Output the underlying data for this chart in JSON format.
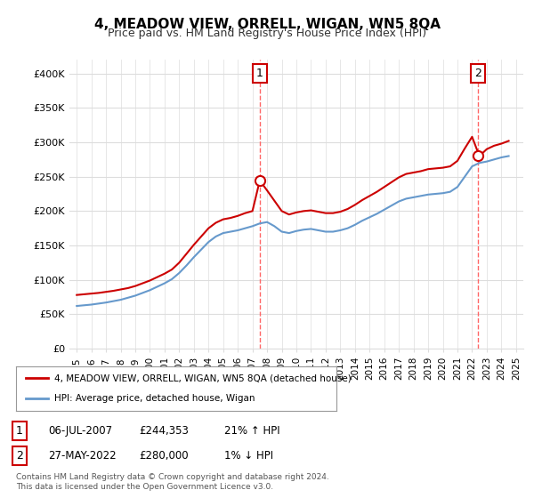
{
  "title": "4, MEADOW VIEW, ORRELL, WIGAN, WN5 8QA",
  "subtitle": "Price paid vs. HM Land Registry's House Price Index (HPI)",
  "xlabel": "",
  "ylabel": "",
  "background_color": "#ffffff",
  "grid_color": "#dddddd",
  "sale1": {
    "date_label": "06-JUL-2007",
    "price": 244353,
    "hpi_rel": "21% ↑ HPI",
    "marker_x": 2007.5
  },
  "sale2": {
    "date_label": "27-MAY-2022",
    "price": 280000,
    "hpi_rel": "1% ↓ HPI",
    "marker_x": 2022.4
  },
  "legend_label_red": "4, MEADOW VIEW, ORRELL, WIGAN, WN5 8QA (detached house)",
  "legend_label_blue": "HPI: Average price, detached house, Wigan",
  "footnote": "Contains HM Land Registry data © Crown copyright and database right 2024.\nThis data is licensed under the Open Government Licence v3.0.",
  "red_color": "#cc0000",
  "blue_color": "#6699cc",
  "dashed_red": "#ff6666",
  "ylim": [
    0,
    420000
  ],
  "yticks": [
    0,
    50000,
    100000,
    150000,
    200000,
    250000,
    300000,
    350000,
    400000
  ],
  "ytick_labels": [
    "£0",
    "£50K",
    "£100K",
    "£150K",
    "£200K",
    "£250K",
    "£300K",
    "£350K",
    "£400K"
  ],
  "xlim_start": 1994.5,
  "xlim_end": 2025.5,
  "xticks": [
    1995,
    1996,
    1997,
    1998,
    1999,
    2000,
    2001,
    2002,
    2003,
    2004,
    2005,
    2006,
    2007,
    2008,
    2009,
    2010,
    2011,
    2012,
    2013,
    2014,
    2015,
    2016,
    2017,
    2018,
    2019,
    2020,
    2021,
    2022,
    2023,
    2024,
    2025
  ],
  "hpi_x": [
    1995.0,
    1995.5,
    1996.0,
    1996.5,
    1997.0,
    1997.5,
    1998.0,
    1998.5,
    1999.0,
    1999.5,
    2000.0,
    2000.5,
    2001.0,
    2001.5,
    2002.0,
    2002.5,
    2003.0,
    2003.5,
    2004.0,
    2004.5,
    2005.0,
    2005.5,
    2006.0,
    2006.5,
    2007.0,
    2007.5,
    2008.0,
    2008.5,
    2009.0,
    2009.5,
    2010.0,
    2010.5,
    2011.0,
    2011.5,
    2012.0,
    2012.5,
    2013.0,
    2013.5,
    2014.0,
    2014.5,
    2015.0,
    2015.5,
    2016.0,
    2016.5,
    2017.0,
    2017.5,
    2018.0,
    2018.5,
    2019.0,
    2019.5,
    2020.0,
    2020.5,
    2021.0,
    2021.5,
    2022.0,
    2022.5,
    2023.0,
    2023.5,
    2024.0,
    2024.5
  ],
  "hpi_y": [
    62000,
    63000,
    64000,
    65500,
    67000,
    69000,
    71000,
    74000,
    77000,
    81000,
    85000,
    90000,
    95000,
    101000,
    110000,
    121000,
    133000,
    144000,
    155000,
    163000,
    168000,
    170000,
    172000,
    175000,
    178000,
    182000,
    184000,
    178000,
    170000,
    168000,
    171000,
    173000,
    174000,
    172000,
    170000,
    170000,
    172000,
    175000,
    180000,
    186000,
    191000,
    196000,
    202000,
    208000,
    214000,
    218000,
    220000,
    222000,
    224000,
    225000,
    226000,
    228000,
    235000,
    250000,
    265000,
    270000,
    272000,
    275000,
    278000,
    280000
  ],
  "red_x": [
    1995.0,
    1995.5,
    1996.0,
    1996.5,
    1997.0,
    1997.5,
    1998.0,
    1998.5,
    1999.0,
    1999.5,
    2000.0,
    2000.5,
    2001.0,
    2001.5,
    2002.0,
    2002.5,
    2003.0,
    2003.5,
    2004.0,
    2004.5,
    2005.0,
    2005.5,
    2006.0,
    2006.5,
    2007.0,
    2007.5,
    2008.0,
    2008.5,
    2009.0,
    2009.5,
    2010.0,
    2010.5,
    2011.0,
    2011.5,
    2012.0,
    2012.5,
    2013.0,
    2013.5,
    2014.0,
    2014.5,
    2015.0,
    2015.5,
    2016.0,
    2016.5,
    2017.0,
    2017.5,
    2018.0,
    2018.5,
    2019.0,
    2019.5,
    2020.0,
    2020.5,
    2021.0,
    2021.5,
    2022.0,
    2022.5,
    2023.0,
    2023.5,
    2024.0,
    2024.5
  ],
  "red_y": [
    78000,
    79000,
    80000,
    81000,
    82500,
    84000,
    86000,
    88000,
    91000,
    95000,
    99000,
    104000,
    109000,
    115000,
    125000,
    138000,
    151000,
    163000,
    175000,
    183000,
    188000,
    190000,
    193000,
    197000,
    200000,
    244353,
    230000,
    215000,
    200000,
    195000,
    198000,
    200000,
    201000,
    199000,
    197000,
    197000,
    199000,
    203000,
    209000,
    216000,
    222000,
    228000,
    235000,
    242000,
    249000,
    254000,
    256000,
    258000,
    261000,
    262000,
    263000,
    265000,
    273000,
    291000,
    308000,
    280000,
    290000,
    295000,
    298000,
    302000
  ]
}
